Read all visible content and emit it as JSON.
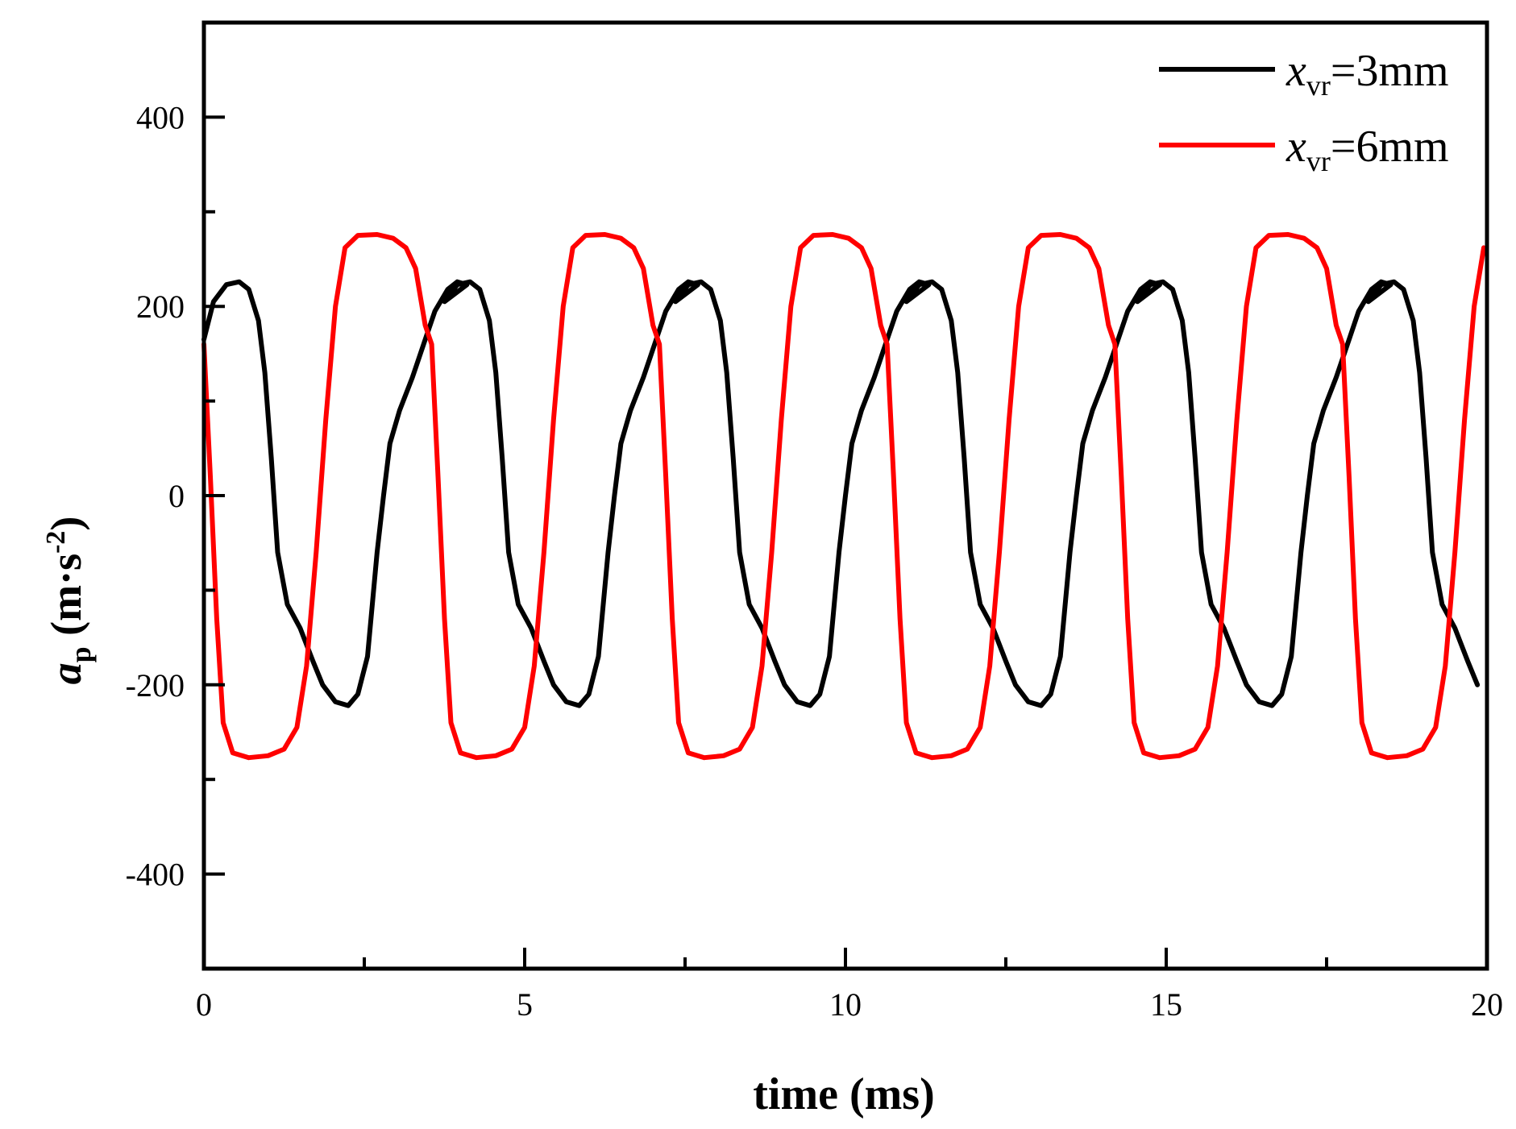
{
  "chart_data": {
    "type": "line",
    "title": "",
    "xlabel": "time (ms)",
    "ylabel": {
      "symbol": "a",
      "symbol_sub": "p",
      "unit_open": "(m·s",
      "unit_sup": "-2",
      "unit_close": ")"
    },
    "xlim": [
      0,
      20
    ],
    "ylim": [
      -500,
      500
    ],
    "x_ticks": [
      0,
      5,
      10,
      15,
      20
    ],
    "x_tick_labels": [
      "0",
      "5",
      "10",
      "15",
      "20"
    ],
    "y_ticks": [
      -400,
      -200,
      0,
      200,
      400
    ],
    "y_tick_labels": [
      "-400",
      "-200",
      "0",
      "200",
      "400"
    ],
    "grid": false,
    "legend_position": "top-right",
    "series": [
      {
        "name": "x_vr=3mm",
        "legend": {
          "var": "x",
          "sub": "vr",
          "text": "=3mm"
        },
        "color": "#000000",
        "period_ms": 3.6,
        "phase_offset_ms": 0.0,
        "cycle_samples": [
          [
            0.0,
            165
          ],
          [
            0.15,
            205
          ],
          [
            0.35,
            223
          ],
          [
            0.55,
            226
          ],
          [
            0.7,
            218
          ],
          [
            0.85,
            185
          ],
          [
            0.95,
            130
          ],
          [
            1.05,
            40
          ],
          [
            1.15,
            -60
          ],
          [
            1.3,
            -115
          ],
          [
            1.5,
            -140
          ],
          [
            1.7,
            -175
          ],
          [
            1.85,
            -200
          ],
          [
            2.05,
            -218
          ],
          [
            2.25,
            -222
          ],
          [
            2.4,
            -210
          ],
          [
            2.55,
            -170
          ],
          [
            2.7,
            -60
          ],
          [
            2.8,
            0
          ],
          [
            2.9,
            55
          ],
          [
            3.05,
            90
          ],
          [
            3.25,
            125
          ],
          [
            3.45,
            165
          ],
          [
            3.6,
            195
          ],
          [
            3.8,
            218
          ],
          [
            3.95,
            226
          ],
          [
            4.1,
            223
          ]
        ]
      },
      {
        "name": "x_vr=6mm",
        "legend": {
          "var": "x",
          "sub": "vr",
          "text": "=6mm"
        },
        "color": "#ff0000",
        "period_ms": 3.55,
        "phase_offset_ms": 0.0,
        "cycle_samples": [
          [
            0.0,
            160
          ],
          [
            0.1,
            20
          ],
          [
            0.2,
            -130
          ],
          [
            0.3,
            -240
          ],
          [
            0.45,
            -272
          ],
          [
            0.7,
            -277
          ],
          [
            1.0,
            -275
          ],
          [
            1.25,
            -268
          ],
          [
            1.45,
            -245
          ],
          [
            1.6,
            -180
          ],
          [
            1.75,
            -60
          ],
          [
            1.9,
            80
          ],
          [
            2.05,
            200
          ],
          [
            2.2,
            262
          ],
          [
            2.4,
            275
          ],
          [
            2.7,
            276
          ],
          [
            2.95,
            272
          ],
          [
            3.15,
            262
          ],
          [
            3.3,
            240
          ],
          [
            3.45,
            180
          ],
          [
            3.55,
            160
          ]
        ]
      }
    ]
  }
}
